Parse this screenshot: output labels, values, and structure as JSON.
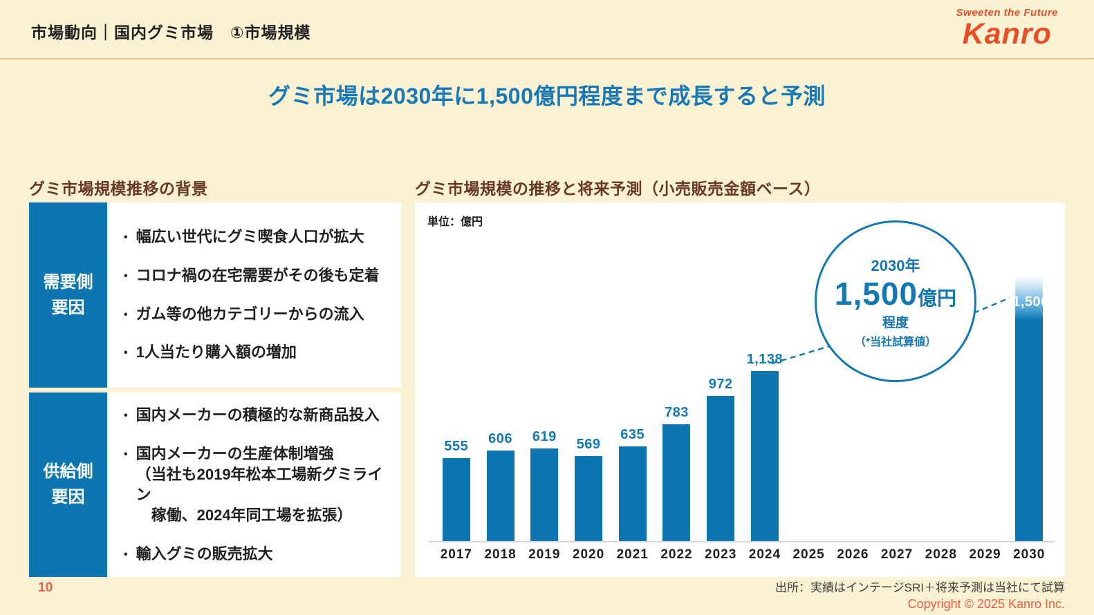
{
  "header": {
    "title": "市場動向｜国内グミ市場　①市場規模",
    "logo_tagline": "Sweeten the Future",
    "logo_name": "Kanro"
  },
  "main_title": "グミ市場は2030年に1,500億円程度まで成長すると予測",
  "left_panel": {
    "heading": "グミ市場規模推移の背景",
    "rows": [
      {
        "label_lines": [
          "需要側",
          "要因"
        ],
        "bullets": [
          "幅広い世代にグミ喫食人口が拡大",
          "コロナ禍の在宅需要がその後も定着",
          "ガム等の他カテゴリーからの流入",
          "1人当たり購入額の増加"
        ]
      },
      {
        "label_lines": [
          "供給側",
          "要因"
        ],
        "bullets": [
          "国内メーカーの積極的な新商品投入",
          "国内メーカーの生産体制増強\n（当社も2019年松本工場新グミライン\n　稼働、2024年同工場を拡張）",
          "輸入グミの販売拡大"
        ]
      }
    ]
  },
  "right_panel": {
    "heading": "グミ市場規模の推移と将来予測（小売販売金額ベース）",
    "unit_label": "単位：億円",
    "callout": {
      "line1": "2030年",
      "value": "1,500",
      "value_suffix": "億円",
      "line3": "程度",
      "line4": "（*当社試算値）"
    }
  },
  "chart_data": {
    "type": "bar",
    "title": "グミ市場規模の推移と将来予測（小売販売金額ベース）",
    "unit": "億円",
    "categories": [
      "2017",
      "2018",
      "2019",
      "2020",
      "2021",
      "2022",
      "2023",
      "2024",
      "2025",
      "2026",
      "2027",
      "2028",
      "2029",
      "2030"
    ],
    "values": [
      555,
      606,
      619,
      569,
      635,
      783,
      972,
      1138,
      null,
      null,
      null,
      null,
      null,
      1500
    ],
    "labels": [
      "555",
      "606",
      "619",
      "569",
      "635",
      "783",
      "972",
      "1,138",
      "",
      "",
      "",
      "",
      "",
      "1,500"
    ],
    "forecast_category": "2030",
    "annotation": "2030年 1,500億円程度（*当社試算値）",
    "bar_color": "#0B76AF",
    "label_color": "#1478B4",
    "ylim": [
      0,
      1600
    ],
    "grid": false,
    "legend": false
  },
  "footer": {
    "page_number": "10",
    "source": "出所：実績はインテージSRI＋将来予測は当社にて試算",
    "copyright": "Copyright © 2025  Kanro Inc."
  },
  "colors": {
    "background": "#FBF2D3",
    "divider": "#F5B98C",
    "title_blue": "#1778B6",
    "heading_brown": "#683728",
    "bar_blue": "#0B76AF",
    "logo_red": "#E84E28",
    "footer_orange": "#EF5B41"
  }
}
